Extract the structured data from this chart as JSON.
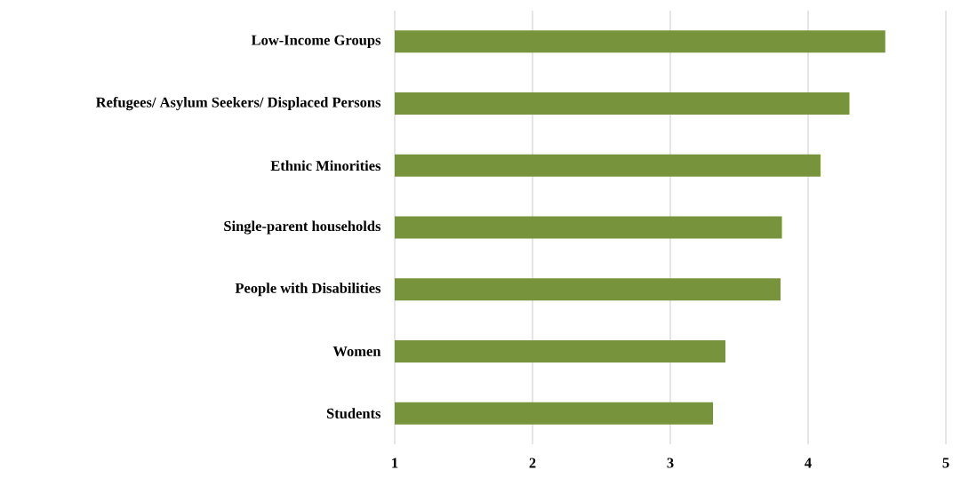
{
  "chart_data": {
    "type": "bar",
    "orientation": "horizontal",
    "categories": [
      "Low-Income Groups",
      "Refugees/ Asylum Seekers/ Displaced Persons",
      "Ethnic Minorities",
      "Single-parent households",
      "People with Disabilities",
      "Women",
      "Students"
    ],
    "values": [
      4.56,
      4.3,
      4.09,
      3.81,
      3.8,
      3.4,
      3.31
    ],
    "color": "#77933c",
    "xlim": [
      1,
      5
    ],
    "xticks": [
      1,
      2,
      3,
      4,
      5
    ],
    "grid": "x"
  }
}
